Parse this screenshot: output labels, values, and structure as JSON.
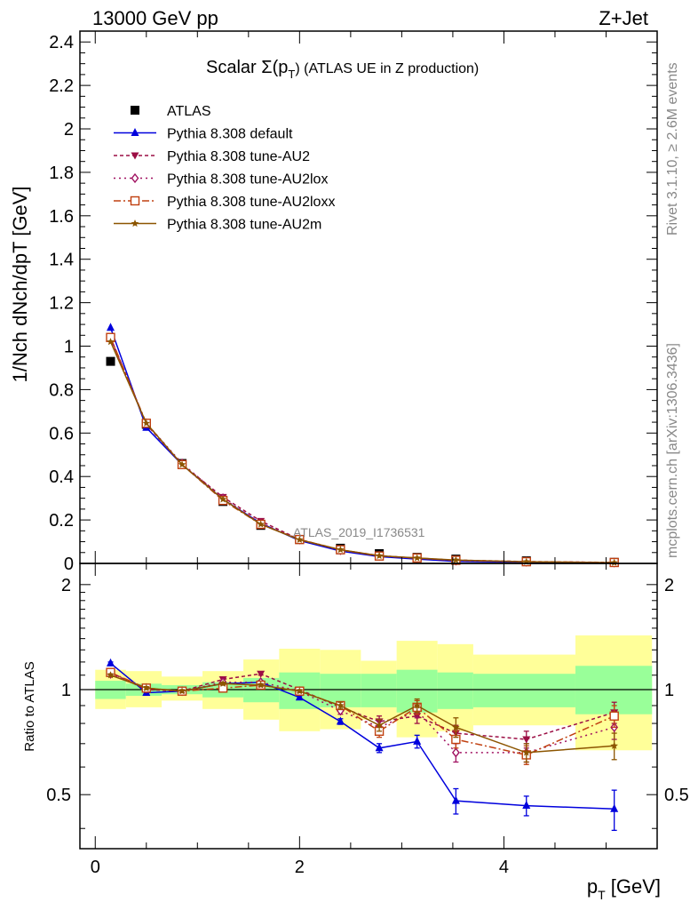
{
  "header": {
    "left_label": "13000 GeV pp",
    "right_label": "Z+Jet"
  },
  "side_labels": {
    "rivet": "Rivet 3.1.10, ≥ 2.6M events",
    "mcplots": "mcplots.cern.ch [arXiv:1306.3436]"
  },
  "analysis_tag": "ATLAS_2019_I1736531",
  "chart_data": [
    {
      "type": "line",
      "title": "Scalar Σ(pT) (ATLAS UE in Z production)",
      "title_parts": {
        "main": "Scalar Σ(p",
        "sub": "T",
        "tail": ") (ATLAS UE in Z production)"
      },
      "ylabel": "1/Nch dNch/dpT [GeV]",
      "xlim": [
        -0.15,
        5.5
      ],
      "ylim": [
        0,
        2.45
      ],
      "yticks": [
        "0",
        "0.2",
        "0.4",
        "0.6",
        "0.8",
        "1",
        "1.2",
        "1.4",
        "1.6",
        "1.8",
        "2",
        "2.2",
        "2.4"
      ],
      "legend_position": "top-left",
      "x": [
        0.15,
        0.5,
        0.85,
        1.25,
        1.62,
        2.0,
        2.4,
        2.78,
        3.15,
        3.53,
        4.22,
        5.08
      ],
      "series": [
        {
          "name": "ATLAS",
          "marker": "square",
          "color": "#000000",
          "values": [
            0.93,
            0.64,
            0.46,
            0.285,
            0.175,
            0.11,
            0.07,
            0.045,
            0.028,
            0.02,
            0.012,
            0.005
          ]
        },
        {
          "name": "Pythia 8.308 default",
          "marker": "triangle-up",
          "color": "#0000dd",
          "dash": "solid",
          "values": [
            1.085,
            0.625,
            0.455,
            0.295,
            0.185,
            0.105,
            0.057,
            0.031,
            0.02,
            0.0096,
            0.0056,
            0.0023
          ]
        },
        {
          "name": "Pythia 8.308 tune-AU2",
          "marker": "triangle-down",
          "color": "#9c0e44",
          "dash": "4,3",
          "values": [
            1.04,
            0.64,
            0.455,
            0.305,
            0.195,
            0.11,
            0.062,
            0.036,
            0.0235,
            0.015,
            0.0087,
            0.0043
          ]
        },
        {
          "name": "Pythia 8.308 tune-AU2lox",
          "marker": "diamond-open",
          "color": "#a01060",
          "dash": "2,4",
          "values": [
            1.035,
            0.645,
            0.46,
            0.3,
            0.185,
            0.11,
            0.061,
            0.035,
            0.0245,
            0.013,
            0.0079,
            0.0039
          ]
        },
        {
          "name": "Pythia 8.308 tune-AU2loxx",
          "marker": "square-open",
          "color": "#c04010",
          "dash": "8,3,2,3",
          "values": [
            1.04,
            0.645,
            0.455,
            0.29,
            0.18,
            0.11,
            0.063,
            0.034,
            0.025,
            0.0145,
            0.0078,
            0.0042
          ]
        },
        {
          "name": "Pythia 8.308 tune-AU2m",
          "marker": "star",
          "color": "#8c5500",
          "dash": "solid",
          "values": [
            1.02,
            0.645,
            0.455,
            0.295,
            0.18,
            0.109,
            0.063,
            0.035,
            0.025,
            0.0155,
            0.0079,
            0.0035
          ]
        }
      ]
    },
    {
      "type": "line",
      "ylabel": "Ratio to ATLAS",
      "xlabel": "pT [GeV]",
      "xlabel_parts": {
        "main": "p",
        "sub": "T",
        "tail": " [GeV]"
      },
      "xlim": [
        -0.15,
        5.5
      ],
      "ylim": [
        0.35,
        2.3
      ],
      "yscale": "log",
      "yticks": [
        "0.5",
        "1",
        "2"
      ],
      "xticks": [
        "0",
        "2",
        "4"
      ],
      "reference_line": 1,
      "bins": [
        {
          "lo": 0.0,
          "hi": 0.3,
          "band_green": [
            0.94,
            1.06
          ],
          "band_yellow": [
            0.88,
            1.14
          ]
        },
        {
          "lo": 0.3,
          "hi": 0.65,
          "band_green": [
            0.96,
            1.04
          ],
          "band_yellow": [
            0.89,
            1.13
          ]
        },
        {
          "lo": 0.65,
          "hi": 1.05,
          "band_green": [
            0.97,
            1.03
          ],
          "band_yellow": [
            0.93,
            1.09
          ]
        },
        {
          "lo": 1.05,
          "hi": 1.45,
          "band_green": [
            0.95,
            1.05
          ],
          "band_yellow": [
            0.88,
            1.13
          ]
        },
        {
          "lo": 1.45,
          "hi": 1.8,
          "band_green": [
            0.92,
            1.08
          ],
          "band_yellow": [
            0.82,
            1.22
          ]
        },
        {
          "lo": 1.8,
          "hi": 2.2,
          "band_green": [
            0.88,
            1.12
          ],
          "band_yellow": [
            0.76,
            1.31
          ]
        },
        {
          "lo": 2.2,
          "hi": 2.6,
          "band_green": [
            0.89,
            1.11
          ],
          "band_yellow": [
            0.77,
            1.3
          ]
        },
        {
          "lo": 2.6,
          "hi": 2.95,
          "band_green": [
            0.89,
            1.11
          ],
          "band_yellow": [
            0.82,
            1.21
          ]
        },
        {
          "lo": 2.95,
          "hi": 3.35,
          "band_green": [
            0.86,
            1.14
          ],
          "band_yellow": [
            0.73,
            1.38
          ]
        },
        {
          "lo": 3.35,
          "hi": 3.7,
          "band_green": [
            0.88,
            1.12
          ],
          "band_yellow": [
            0.76,
            1.35
          ]
        },
        {
          "lo": 3.7,
          "hi": 4.7,
          "band_green": [
            0.89,
            1.11
          ],
          "band_yellow": [
            0.79,
            1.26
          ]
        },
        {
          "lo": 4.7,
          "hi": 5.45,
          "band_green": [
            0.85,
            1.17
          ],
          "band_yellow": [
            0.67,
            1.43
          ]
        }
      ],
      "x": [
        0.15,
        0.5,
        0.85,
        1.25,
        1.62,
        2.0,
        2.4,
        2.78,
        3.15,
        3.53,
        4.22,
        5.08
      ],
      "series": [
        {
          "name": "Pythia 8.308 default",
          "marker": "triangle-up",
          "color": "#0000dd",
          "dash": "solid",
          "values": [
            1.19,
            0.98,
            0.99,
            1.04,
            1.05,
            0.95,
            0.81,
            0.68,
            0.71,
            0.48,
            0.465,
            0.455
          ],
          "errors": [
            0.01,
            0.01,
            0.01,
            0.01,
            0.01,
            0.01,
            0.015,
            0.02,
            0.03,
            0.04,
            0.03,
            0.06
          ]
        },
        {
          "name": "Pythia 8.308 tune-AU2",
          "marker": "triangle-down",
          "color": "#9c0e44",
          "dash": "4,3",
          "values": [
            1.12,
            1.0,
            0.99,
            1.07,
            1.11,
            1.0,
            0.89,
            0.81,
            0.84,
            0.75,
            0.72,
            0.86
          ],
          "errors": [
            0.01,
            0.01,
            0.01,
            0.01,
            0.01,
            0.01,
            0.02,
            0.03,
            0.04,
            0.04,
            0.04,
            0.06
          ]
        },
        {
          "name": "Pythia 8.308 tune-AU2lox",
          "marker": "diamond-open",
          "color": "#a01060",
          "dash": "2,4",
          "values": [
            1.11,
            1.01,
            0.99,
            1.05,
            1.05,
            0.99,
            0.87,
            0.78,
            0.87,
            0.66,
            0.66,
            0.78
          ],
          "errors": [
            0.01,
            0.01,
            0.01,
            0.01,
            0.01,
            0.01,
            0.02,
            0.03,
            0.04,
            0.04,
            0.04,
            0.06
          ]
        },
        {
          "name": "Pythia 8.308 tune-AU2loxx",
          "marker": "square-open",
          "color": "#c04010",
          "dash": "8,3,2,3",
          "values": [
            1.12,
            1.01,
            0.99,
            1.01,
            1.03,
            0.99,
            0.9,
            0.76,
            0.89,
            0.72,
            0.65,
            0.84
          ],
          "errors": [
            0.01,
            0.01,
            0.01,
            0.01,
            0.01,
            0.01,
            0.02,
            0.03,
            0.04,
            0.04,
            0.04,
            0.06
          ]
        },
        {
          "name": "Pythia 8.308 tune-AU2m",
          "marker": "star",
          "color": "#8c5500",
          "dash": "solid",
          "values": [
            1.1,
            1.01,
            0.99,
            1.04,
            1.03,
            0.99,
            0.9,
            0.79,
            0.9,
            0.78,
            0.66,
            0.69
          ],
          "errors": [
            0.01,
            0.01,
            0.01,
            0.01,
            0.01,
            0.01,
            0.02,
            0.03,
            0.04,
            0.05,
            0.04,
            0.06
          ]
        }
      ]
    }
  ]
}
